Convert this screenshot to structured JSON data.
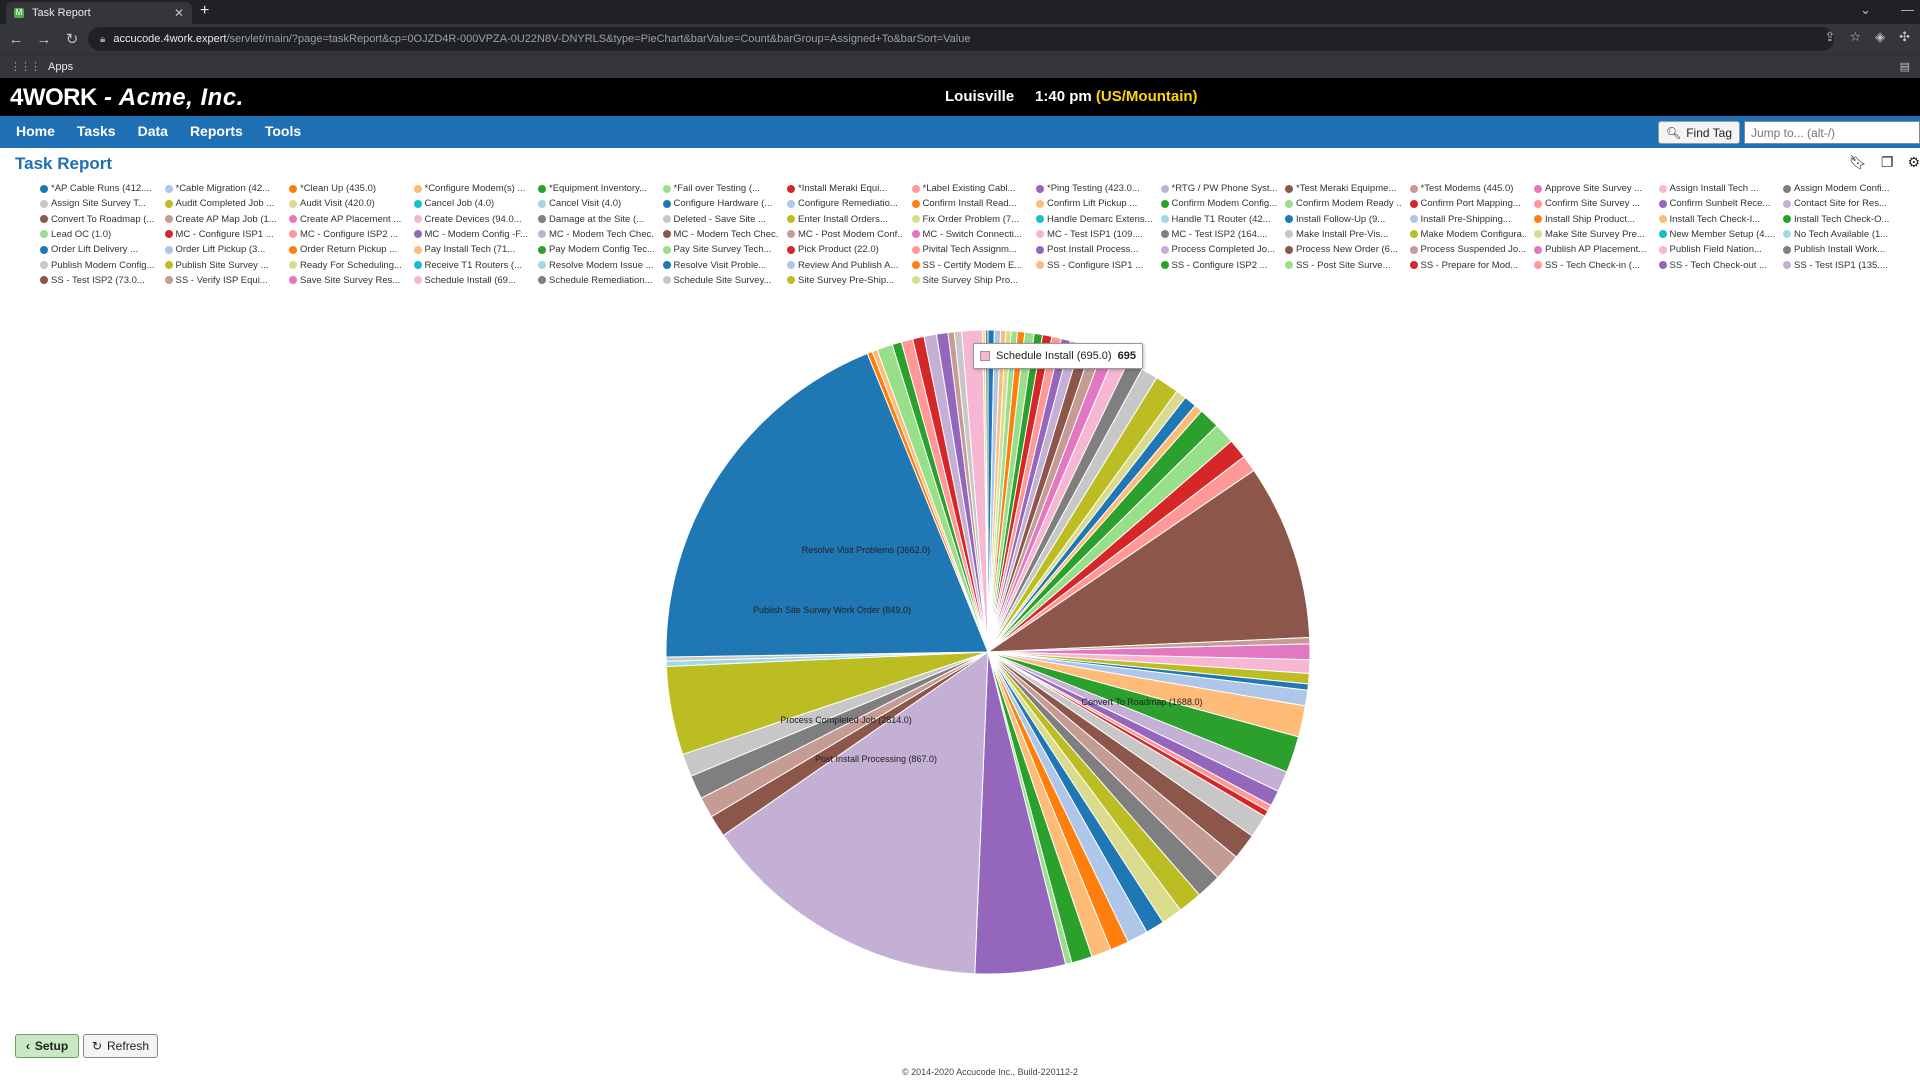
{
  "browser": {
    "tab_title": "Task Report",
    "url_host": "accucode.4work.expert",
    "url_path": "/servlet/main/?page=taskReport&cp=0OJZD4R-000VPZA-0U22N8V-DNYRLS&type=PieChart&barValue=Count&barGroup=Assigned+To&barSort=Value",
    "bookmark_apps": "Apps"
  },
  "header": {
    "brand_logo": "4WORK",
    "brand_company": " - Acme, Inc.",
    "location": "Louisville",
    "time": "1:40 pm",
    "timezone": "(US/Mountain)"
  },
  "nav": {
    "items": [
      "Home",
      "Tasks",
      "Data",
      "Reports",
      "Tools"
    ],
    "find_tag": "Find Tag",
    "jump_placeholder": "Jump to... (alt-/)"
  },
  "page": {
    "title": "Task Report"
  },
  "legend": [
    [
      "*AP Cable Runs (412....",
      "#1f77b4"
    ],
    [
      "*Cable Migration (42...",
      "#aec7e8"
    ],
    [
      "*Clean Up (435.0)",
      "#ff7f0e"
    ],
    [
      "*Configure Modem(s) ...",
      "#ffbb78"
    ],
    [
      "*Equipment Inventory...",
      "#2ca02c"
    ],
    [
      "*Fail over Testing (...",
      "#98df8a"
    ],
    [
      "*Install Meraki Equi...",
      "#d62728"
    ],
    [
      "*Label Existing Cabl...",
      "#ff9896"
    ],
    [
      "*Ping Testing (423.0...",
      "#9467bd"
    ],
    [
      "*RTG / PW Phone Syst...",
      "#c5b0d5"
    ],
    [
      "*Test Meraki Equipme...",
      "#8c564b"
    ],
    [
      "*Test Modems (445.0)",
      "#c49c94"
    ],
    [
      "Approve Site Survey ...",
      "#e377c2"
    ],
    [
      "Assign Install Tech ...",
      "#f7b6d2"
    ],
    [
      "Assign Modem Confi...",
      "#7f7f7f"
    ],
    [
      "Assign Site Survey T...",
      "#c7c7c7"
    ],
    [
      "Audit Completed Job ...",
      "#bcbd22"
    ],
    [
      "Audit Visit (420.0)",
      "#dbdb8d"
    ],
    [
      "Cancel Job (4.0)",
      "#17becf"
    ],
    [
      "Cancel Visit (4.0)",
      "#9edae5"
    ],
    [
      "Configure Hardware (...",
      "#1f77b4"
    ],
    [
      "Configure Remediatio...",
      "#aec7e8"
    ],
    [
      "Confirm Install Read...",
      "#ff7f0e"
    ],
    [
      "Confirm Lift Pickup ...",
      "#ffbb78"
    ],
    [
      "Confirm Modem Config...",
      "#2ca02c"
    ],
    [
      "Confirm Modem Ready ...",
      "#98df8a"
    ],
    [
      "Confirm Port Mapping...",
      "#d62728"
    ],
    [
      "Confirm Site Survey ...",
      "#ff9896"
    ],
    [
      "Confirm Sunbelt Rece...",
      "#9467bd"
    ],
    [
      "Contact Site for Res...",
      "#c5b0d5"
    ],
    [
      "Convert To Roadmap (...",
      "#8c564b"
    ],
    [
      "Create AP Map Job (1...",
      "#c49c94"
    ],
    [
      "Create AP Placement ...",
      "#e377c2"
    ],
    [
      "Create Devices (94.0...",
      "#f7b6d2"
    ],
    [
      "Damage at the Site (...",
      "#7f7f7f"
    ],
    [
      "Deleted - Save Site ...",
      "#c7c7c7"
    ],
    [
      "Enter Install Orders...",
      "#bcbd22"
    ],
    [
      "Fix Order Problem (7...",
      "#dbdb8d"
    ],
    [
      "Handle Demarc Extens...",
      "#17becf"
    ],
    [
      "Handle T1 Router (42...",
      "#9edae5"
    ],
    [
      "Install Follow-Up (9...",
      "#1f77b4"
    ],
    [
      "Install Pre-Shipping...",
      "#aec7e8"
    ],
    [
      "Install Ship Product...",
      "#ff7f0e"
    ],
    [
      "Install Tech Check-I...",
      "#ffbb78"
    ],
    [
      "Install Tech Check-O...",
      "#2ca02c"
    ],
    [
      "Lead OC (1.0)",
      "#98df8a"
    ],
    [
      "MC - Configure ISP1 ...",
      "#d62728"
    ],
    [
      "MC - Configure ISP2 ...",
      "#ff9896"
    ],
    [
      "MC - Modem Config -F...",
      "#9467bd"
    ],
    [
      "MC - Modem Tech Chec...",
      "#c5b0d5"
    ],
    [
      "MC - Modem Tech Chec...",
      "#8c564b"
    ],
    [
      "MC - Post Modem Conf...",
      "#c49c94"
    ],
    [
      "MC - Switch Connecti...",
      "#e377c2"
    ],
    [
      "MC - Test ISP1 (109....",
      "#f7b6d2"
    ],
    [
      "MC - Test ISP2 (164....",
      "#7f7f7f"
    ],
    [
      "Make Install Pre-Vis...",
      "#c7c7c7"
    ],
    [
      "Make Modem Configura...",
      "#bcbd22"
    ],
    [
      "Make Site Survey Pre...",
      "#dbdb8d"
    ],
    [
      "New Member Setup (4....",
      "#17becf"
    ],
    [
      "No Tech Available (1...",
      "#9edae5"
    ],
    [
      "Order Lift Delivery ...",
      "#1f77b4"
    ],
    [
      "Order Lift Pickup (3...",
      "#aec7e8"
    ],
    [
      "Order Return Pickup ...",
      "#ff7f0e"
    ],
    [
      "Pay Install Tech (71...",
      "#ffbb78"
    ],
    [
      "Pay Modem Config Tec...",
      "#2ca02c"
    ],
    [
      "Pay Site Survey Tech...",
      "#98df8a"
    ],
    [
      "Pick Product (22.0)",
      "#d62728"
    ],
    [
      "Pivital Tech Assignm...",
      "#ff9896"
    ],
    [
      "Post Install Process...",
      "#9467bd"
    ],
    [
      "Process Completed Jo...",
      "#c5b0d5"
    ],
    [
      "Process New Order (6...",
      "#8c564b"
    ],
    [
      "Process Suspended Jo...",
      "#c49c94"
    ],
    [
      "Publish AP Placement...",
      "#e377c2"
    ],
    [
      "Publish Field Nation...",
      "#f7b6d2"
    ],
    [
      "Publish Install Work...",
      "#7f7f7f"
    ],
    [
      "Publish Modem Config...",
      "#c7c7c7"
    ],
    [
      "Publish Site Survey ...",
      "#bcbd22"
    ],
    [
      "Ready For Scheduling...",
      "#dbdb8d"
    ],
    [
      "Receive T1 Routers (...",
      "#17becf"
    ],
    [
      "Resolve Modem Issue ...",
      "#9edae5"
    ],
    [
      "Resolve Visit Proble...",
      "#1f77b4"
    ],
    [
      "Review And Publish A...",
      "#aec7e8"
    ],
    [
      "SS - Certify Modem E...",
      "#ff7f0e"
    ],
    [
      "SS - Configure ISP1 ...",
      "#ffbb78"
    ],
    [
      "SS - Configure ISP2 ...",
      "#2ca02c"
    ],
    [
      "SS - Post Site Surve...",
      "#98df8a"
    ],
    [
      "SS - Prepare for Mod...",
      "#d62728"
    ],
    [
      "SS - Tech Check-in (...",
      "#ff9896"
    ],
    [
      "SS - Tech Check-out ...",
      "#9467bd"
    ],
    [
      "SS - Test ISP1 (135....",
      "#c5b0d5"
    ],
    [
      "SS - Test ISP2 (73.0...",
      "#8c564b"
    ],
    [
      "SS - Verify ISP Equi...",
      "#c49c94"
    ],
    [
      "Save Site Survey Res...",
      "#e377c2"
    ],
    [
      "Schedule Install (69...",
      "#f7b6d2"
    ],
    [
      "Schedule Remediation...",
      "#7f7f7f"
    ],
    [
      "Schedule Site Survey...",
      "#c7c7c7"
    ],
    [
      "Site Survey Pre-Ship...",
      "#bcbd22"
    ],
    [
      "Site Survey Ship Pro...",
      "#dbdb8d"
    ]
  ],
  "chart_data": {
    "type": "pie",
    "labels": [
      "Resolve Visit Problems (3662.0)",
      "Publish Site Survey Work Order (849.0)",
      "Process Completed Job (2814.0)",
      "Post Install Processing (867.0)",
      "Convert To Roadmap (1688.0)"
    ],
    "slices": [
      {
        "value": 60,
        "color": "#1f77b4"
      },
      {
        "value": 60,
        "color": "#aec7e8"
      },
      {
        "value": 50,
        "color": "#ffbb78"
      },
      {
        "value": 50,
        "color": "#dbdb8d"
      },
      {
        "value": 60,
        "color": "#98df8a"
      },
      {
        "value": 70,
        "color": "#ff7f0e"
      },
      {
        "value": 90,
        "color": "#98df8a"
      },
      {
        "value": 80,
        "color": "#2ca02c"
      },
      {
        "value": 90,
        "color": "#d62728"
      },
      {
        "value": 90,
        "color": "#ff9896"
      },
      {
        "value": 90,
        "color": "#9467bd"
      },
      {
        "value": 100,
        "color": "#c5b0d5"
      },
      {
        "value": 110,
        "color": "#8c564b"
      },
      {
        "value": 110,
        "color": "#c49c94"
      },
      {
        "value": 120,
        "color": "#e377c2"
      },
      {
        "value": 140,
        "color": "#f7b6d2"
      },
      {
        "value": 150,
        "color": "#7f7f7f"
      },
      {
        "value": 160,
        "color": "#c7c7c7"
      },
      {
        "value": 230,
        "color": "#bcbd22"
      },
      {
        "value": 100,
        "color": "#dbdb8d"
      },
      {
        "value": 120,
        "color": "#1f77b4"
      },
      {
        "value": 80,
        "color": "#ffbb78"
      },
      {
        "value": 200,
        "color": "#2ca02c"
      },
      {
        "value": 200,
        "color": "#98df8a"
      },
      {
        "value": 190,
        "color": "#d62728"
      },
      {
        "value": 160,
        "color": "#ff9896"
      },
      {
        "value": 1688,
        "color": "#8c564b"
      },
      {
        "value": 60,
        "color": "#c49c94"
      },
      {
        "value": 150,
        "color": "#e377c2"
      },
      {
        "value": 130,
        "color": "#f7b6d2"
      },
      {
        "value": 100,
        "color": "#bcbd22"
      },
      {
        "value": 60,
        "color": "#1f77b4"
      },
      {
        "value": 150,
        "color": "#aec7e8"
      },
      {
        "value": 300,
        "color": "#ffbb78"
      },
      {
        "value": 350,
        "color": "#2ca02c"
      },
      {
        "value": 200,
        "color": "#c5b0d5"
      },
      {
        "value": 150,
        "color": "#9467bd"
      },
      {
        "value": 60,
        "color": "#ff9896"
      },
      {
        "value": 60,
        "color": "#d62728"
      },
      {
        "value": 220,
        "color": "#c7c7c7"
      },
      {
        "value": 250,
        "color": "#8c564b"
      },
      {
        "value": 260,
        "color": "#c49c94"
      },
      {
        "value": 240,
        "color": "#7f7f7f"
      },
      {
        "value": 230,
        "color": "#bcbd22"
      },
      {
        "value": 200,
        "color": "#dbdb8d"
      },
      {
        "value": 180,
        "color": "#1f77b4"
      },
      {
        "value": 200,
        "color": "#aec7e8"
      },
      {
        "value": 180,
        "color": "#ff7f0e"
      },
      {
        "value": 190,
        "color": "#ffbb78"
      },
      {
        "value": 200,
        "color": "#2ca02c"
      },
      {
        "value": 60,
        "color": "#98df8a"
      },
      {
        "value": 867,
        "color": "#9467bd"
      },
      {
        "value": 2814,
        "color": "#c5b0d5"
      },
      {
        "value": 210,
        "color": "#8c564b"
      },
      {
        "value": 200,
        "color": "#c49c94"
      },
      {
        "value": 230,
        "color": "#7f7f7f"
      },
      {
        "value": 220,
        "color": "#c7c7c7"
      },
      {
        "value": 849,
        "color": "#bcbd22"
      },
      {
        "value": 50,
        "color": "#9edae5"
      },
      {
        "value": 40,
        "color": "#c7c7c7"
      },
      {
        "value": 3662,
        "color": "#1f77b4"
      },
      {
        "value": 50,
        "color": "#ff7f0e"
      },
      {
        "value": 50,
        "color": "#ffbb78"
      },
      {
        "value": 150,
        "color": "#98df8a"
      },
      {
        "value": 90,
        "color": "#2ca02c"
      },
      {
        "value": 110,
        "color": "#ff9896"
      },
      {
        "value": 110,
        "color": "#d62728"
      },
      {
        "value": 120,
        "color": "#c5b0d5"
      },
      {
        "value": 110,
        "color": "#9467bd"
      },
      {
        "value": 60,
        "color": "#c49c94"
      },
      {
        "value": 70,
        "color": "#c7c7c7"
      },
      {
        "value": 200,
        "color": "#f7b6d2"
      },
      {
        "value": 25,
        "color": "#dbdb8d"
      },
      {
        "value": 25,
        "color": "#7f7f7f"
      }
    ]
  },
  "tooltip": {
    "label": "Schedule Install (695.0)",
    "value": "695"
  },
  "buttons": {
    "setup": "Setup",
    "refresh": "Refresh"
  },
  "footer": "© 2014-2020 Accucode Inc., Build-220112-2"
}
